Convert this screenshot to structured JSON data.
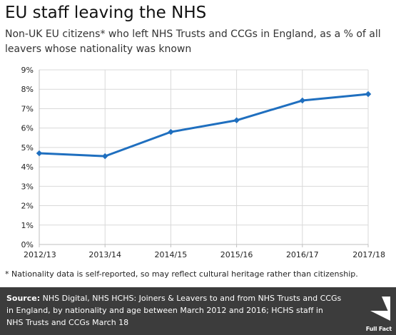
{
  "header": {
    "title": "EU staff leaving the NHS",
    "subtitle": "Non-UK EU citizens* who left NHS Trusts and CCGs in England, as a % of all leavers whose nationality was known"
  },
  "chart_data": {
    "type": "line",
    "categories": [
      "2012/13",
      "2013/14",
      "2014/15",
      "2015/16",
      "2016/17",
      "2017/18"
    ],
    "series": [
      {
        "values": [
          4.7,
          4.55,
          5.8,
          6.4,
          7.42,
          7.75
        ]
      }
    ],
    "y_ticks": [
      "0%",
      "1%",
      "2%",
      "3%",
      "4%",
      "5%",
      "6%",
      "7%",
      "8%",
      "9%"
    ],
    "ylim": [
      0,
      9
    ],
    "unit": "%",
    "grid": true,
    "line_color": "#1f6fbf",
    "title": "",
    "xlabel": "",
    "ylabel": ""
  },
  "footnote": "* Nationality data is self-reported, so may reflect cultural heritage rather than citizenship.",
  "source": {
    "label": "Source:",
    "text": " NHS Digital, NHS HCHS: Joiners & Leavers to and from NHS Trusts and CCGs in England, by nationality and age between March 2012 and 2016; HCHS staff in NHS Trusts and CCGs March 18"
  },
  "logo": {
    "text": "Full Fact",
    "icon": "full-fact-logo-icon",
    "color": "#ffffff"
  },
  "colors": {
    "source_bar": "#3c3c3c",
    "grid": "#d9d9d9",
    "axis": "#bfbfbf"
  }
}
